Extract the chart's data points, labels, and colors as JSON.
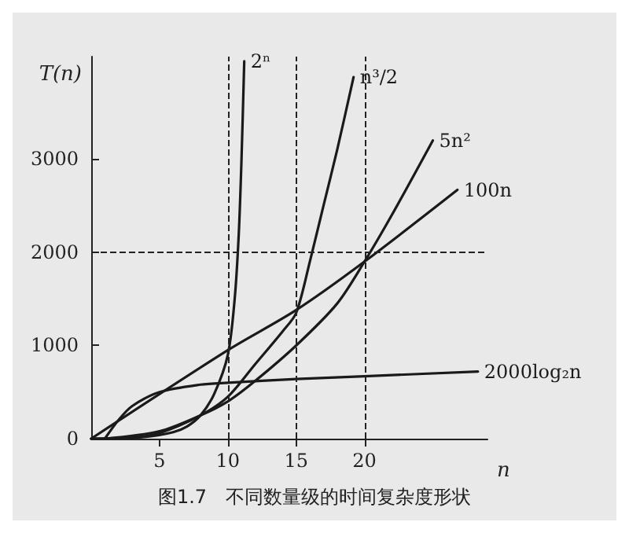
{
  "chart_data": {
    "type": "line",
    "title": "图1.7　不同数量级的时间复杂度形状",
    "xlabel": "n",
    "ylabel": "T(n)",
    "xlim": [
      0,
      29
    ],
    "xticks": [
      5,
      10,
      15,
      20
    ],
    "ylim": [
      0,
      4100
    ],
    "yticks": [
      0,
      1000,
      2000,
      3000
    ],
    "grid": false,
    "legend": false,
    "marker": "none",
    "line_style": "solid",
    "series": [
      {
        "name": "2ⁿ",
        "color": "#1a1a1a",
        "x": [
          0,
          4,
          6,
          7,
          8,
          9,
          10,
          10.5,
          10.8,
          11,
          11.2
        ],
        "values": [
          0,
          20,
          70,
          130,
          250,
          480,
          900,
          1500,
          2200,
          3000,
          4050
        ]
      },
      {
        "name": "n³/2",
        "color": "#1a1a1a",
        "x": [
          0,
          3,
          5,
          8,
          10,
          12,
          14,
          15,
          16,
          17,
          18,
          19.2
        ],
        "values": [
          0,
          10,
          60,
          250,
          450,
          800,
          1150,
          1350,
          1900,
          2500,
          3100,
          3880
        ]
      },
      {
        "name": "5n²",
        "color": "#1a1a1a",
        "x": [
          1,
          5,
          8,
          10,
          12,
          15,
          18,
          20,
          22,
          25
        ],
        "values": [
          0,
          80,
          250,
          400,
          620,
          1000,
          1450,
          1900,
          2400,
          3200
        ]
      },
      {
        "name": "100n",
        "color": "#1a1a1a",
        "x": [
          0,
          10,
          15,
          20,
          26.8
        ],
        "values": [
          0,
          950,
          1380,
          1900,
          2670
        ]
      },
      {
        "name": "2000log₂n",
        "color": "#1a1a1a",
        "x": [
          1,
          2,
          3,
          5,
          8,
          10,
          15,
          20,
          28.3
        ],
        "values": [
          0,
          200,
          350,
          500,
          580,
          600,
          640,
          670,
          720
        ]
      }
    ],
    "ref_lines": [
      {
        "axis": "y",
        "value": 2000,
        "line_style": "dashed"
      },
      {
        "axis": "x",
        "value": 10,
        "line_style": "dashed"
      },
      {
        "axis": "x",
        "value": 15,
        "line_style": "dashed"
      },
      {
        "axis": "x",
        "value": 20,
        "line_style": "dashed"
      }
    ]
  }
}
